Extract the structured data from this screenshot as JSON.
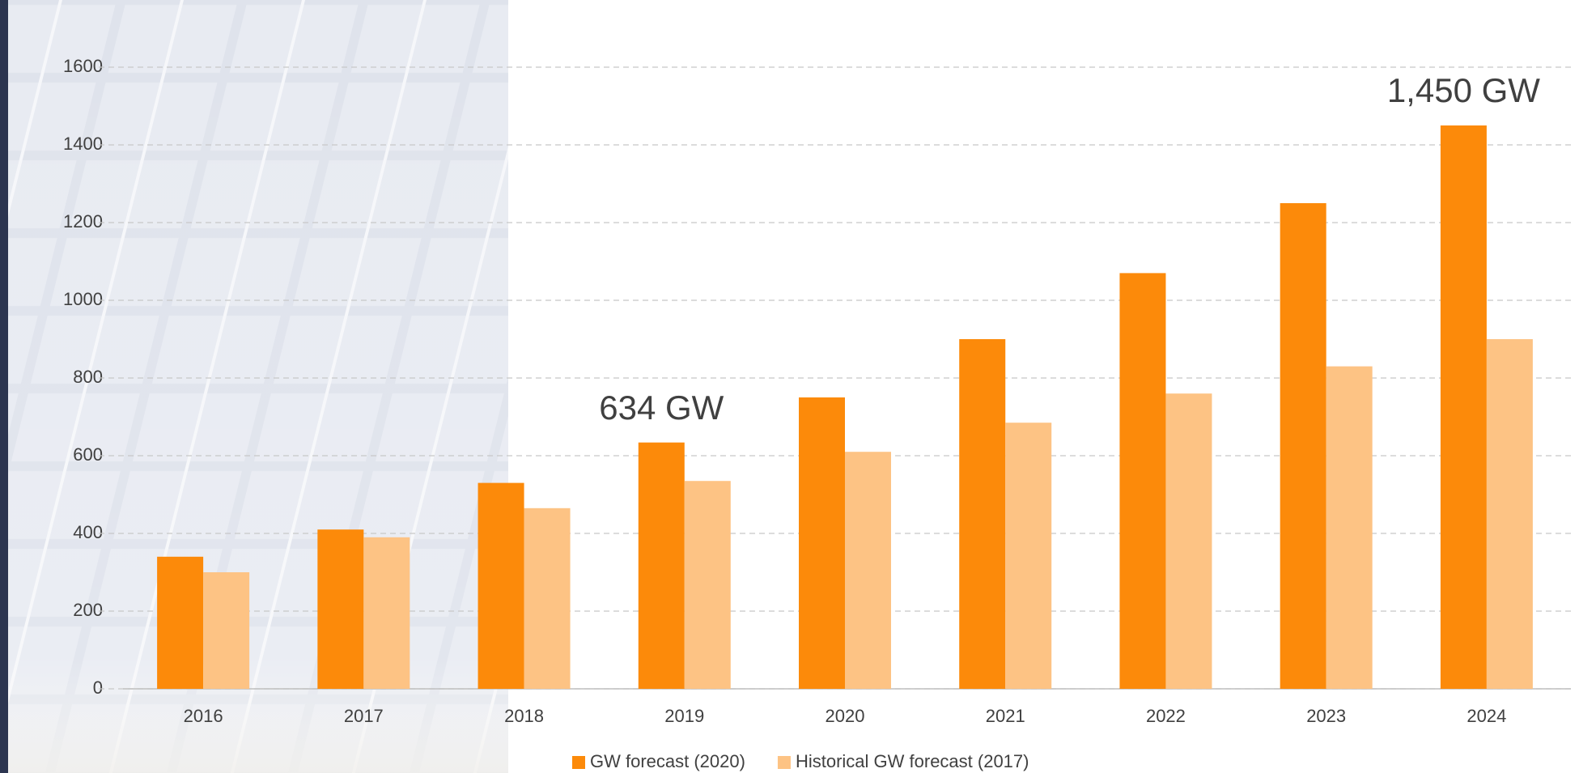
{
  "chart_data": {
    "type": "bar",
    "categories": [
      "2016",
      "2017",
      "2018",
      "2019",
      "2020",
      "2021",
      "2022",
      "2023",
      "2024"
    ],
    "series": [
      {
        "name": "GW forecast (2020)",
        "color": "#fc8a0a",
        "values": [
          340,
          410,
          530,
          634,
          750,
          900,
          1070,
          1250,
          1450
        ],
        "value_labels": [
          null,
          null,
          null,
          "634 GW",
          null,
          null,
          null,
          null,
          "1,450 GW"
        ]
      },
      {
        "name": "Historical GW forecast (2017)",
        "color": "#fdc384",
        "values": [
          300,
          390,
          465,
          535,
          610,
          685,
          760,
          830,
          900
        ]
      }
    ],
    "ylim": [
      0,
      1600
    ],
    "yticks": [
      0,
      200,
      400,
      600,
      800,
      1000,
      1200,
      1400,
      1600
    ],
    "grid": true,
    "legend": "bottom"
  }
}
